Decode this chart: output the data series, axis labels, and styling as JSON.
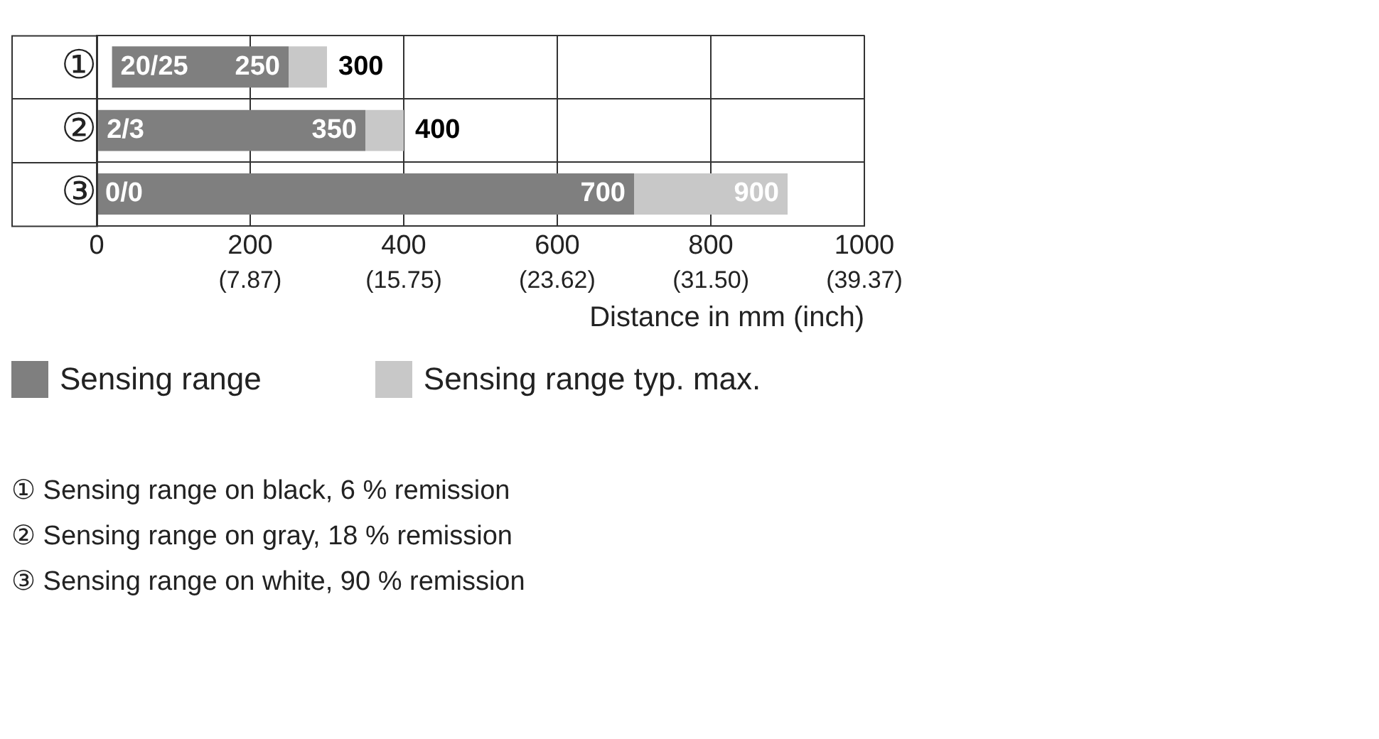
{
  "chart_data": {
    "type": "bar",
    "orientation": "horizontal",
    "xlabel": "Distance in mm (inch)",
    "categories": [
      "①",
      "②",
      "③"
    ],
    "series": [
      {
        "name": "Sensing range",
        "color": "#7f7f7f",
        "base": [
          20,
          2,
          0
        ],
        "values": [
          230,
          348,
          700
        ],
        "value_labels": [
          "250",
          "350",
          "700"
        ]
      },
      {
        "name": "Sensing range typ. max.",
        "color": "#c8c8c8",
        "base": [
          250,
          350,
          700
        ],
        "values": [
          50,
          50,
          200
        ],
        "value_labels": [
          "300",
          "400",
          "900"
        ]
      }
    ],
    "xlim": [
      0,
      1000
    ],
    "xticks": [
      0,
      200,
      400,
      600,
      800,
      1000
    ],
    "x2lim": [
      0,
      39.37
    ],
    "x2ticks": [
      {
        "value": 7.87,
        "label": "(7.87)"
      },
      {
        "value": 15.75,
        "label": "(15.75)"
      },
      {
        "value": 23.62,
        "label": "(23.62)"
      },
      {
        "value": 31.5,
        "label": "(31.50)"
      },
      {
        "value": 39.37,
        "label": "(39.37)"
      }
    ],
    "grid": true,
    "legend": "bottom",
    "annotations": [
      {
        "text": "20/25",
        "x": 20,
        "y": "①"
      },
      {
        "text": "2/3",
        "x": 2,
        "y": "②"
      },
      {
        "text": "0/0",
        "x": 0,
        "y": "③"
      },
      "① Sensing range on black, 6 % remission",
      "② Sensing range on gray, 18 % remission",
      "③ Sensing range on white, 90 % remission"
    ]
  }
}
